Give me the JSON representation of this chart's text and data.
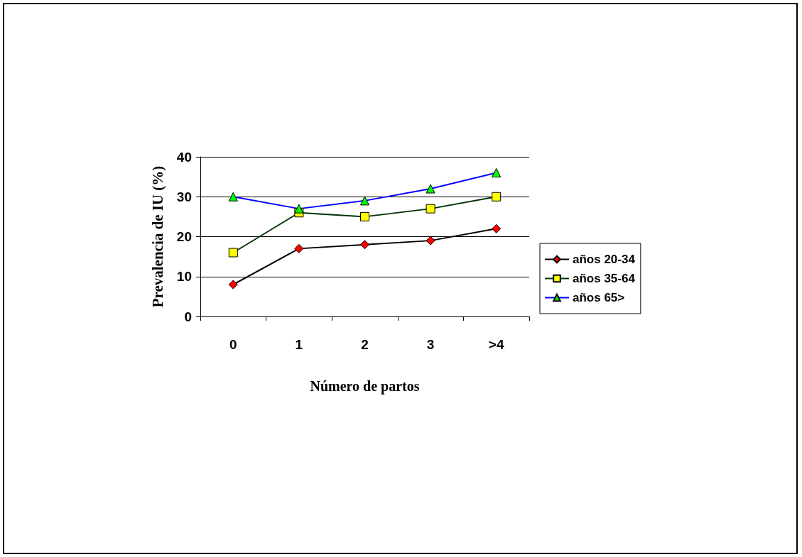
{
  "chart_data": {
    "type": "line",
    "xlabel": "Número de partos",
    "ylabel": "Prevalencia de IU (%)",
    "categories": [
      "0",
      "1",
      "2",
      "3",
      ">4"
    ],
    "series": [
      {
        "name": "años 20-34",
        "color": "#000000",
        "colors": [
          "#ff0000",
          "#ff0000",
          "#ff0000",
          "#ff0000",
          "#ff0000"
        ],
        "marker": "diamond",
        "values": [
          8,
          17,
          18,
          19,
          22
        ]
      },
      {
        "name": "años 35-64",
        "color": "#003300",
        "colors": [
          "#ffff00",
          "#ffff00",
          "#ffff00",
          "#ffff00",
          "#ffff00"
        ],
        "marker": "square",
        "values": [
          16,
          26,
          25,
          27,
          30
        ]
      },
      {
        "name": "años 65>",
        "color": "#0000ff",
        "colors": [
          "#00ff00",
          "#00ff00",
          "#00ff00",
          "#00ff00",
          "#00ff00"
        ],
        "marker": "triangle",
        "values": [
          30,
          27,
          29,
          32,
          36
        ]
      }
    ],
    "ylim": [
      0,
      40
    ],
    "yticks": [
      0,
      10,
      20,
      30,
      40
    ],
    "grid": "y",
    "legend": "right",
    "line_style": "solid"
  }
}
